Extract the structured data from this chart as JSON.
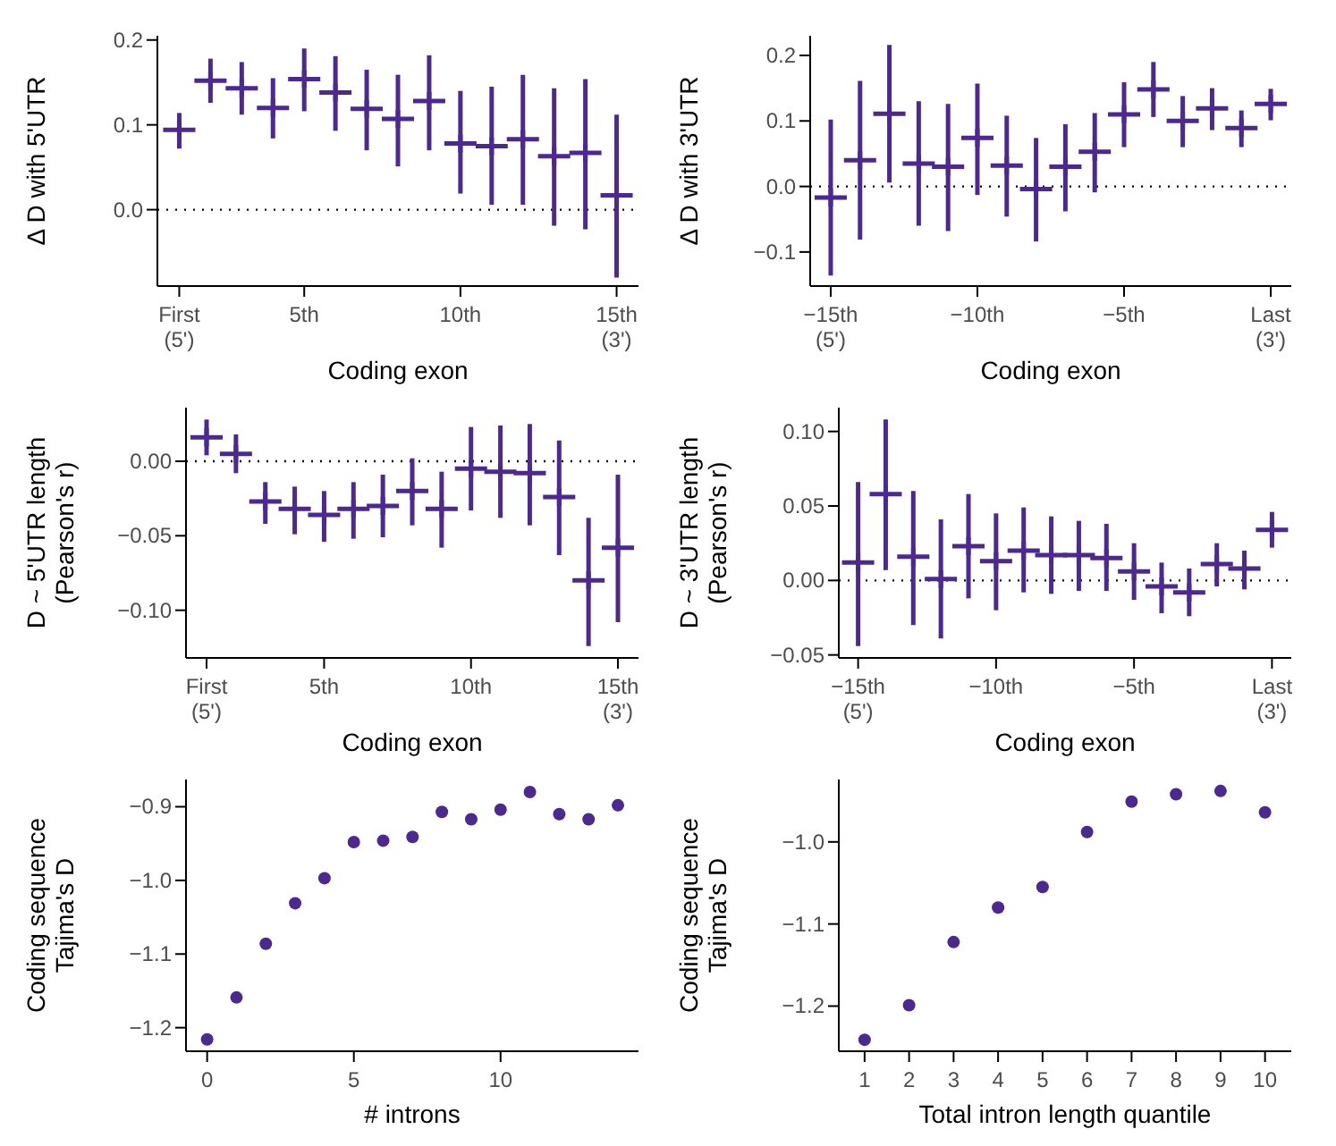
{
  "chart_data": [
    {
      "type": "scatter",
      "marker": "cross",
      "xlabel": "Coding exon",
      "ylabel": "Δ D with 5'UTR",
      "categories": [
        "First\n(5')",
        null,
        null,
        null,
        "5th",
        null,
        null,
        null,
        null,
        "10th",
        null,
        null,
        null,
        null,
        "15th\n(3')"
      ],
      "ylim": [
        -0.09,
        0.205
      ],
      "yticks": [
        {
          "value": 0,
          "label": "0.0"
        },
        {
          "value": 0.1,
          "label": "0.1"
        },
        {
          "value": 0.2,
          "label": "0.2"
        }
      ],
      "ref_lines": [
        {
          "axis": "y",
          "value": 0,
          "line_style": "dotted"
        }
      ],
      "series": [
        {
          "color": "#4b2991",
          "values": [
            0.094,
            0.152,
            0.143,
            0.12,
            0.154,
            0.138,
            0.119,
            0.107,
            0.128,
            0.078,
            0.075,
            0.083,
            0.063,
            0.067,
            0.017
          ],
          "errors": [
            [
              0.072,
              0.114
            ],
            [
              0.126,
              0.178
            ],
            [
              0.112,
              0.174
            ],
            [
              0.084,
              0.155
            ],
            [
              0.116,
              0.19
            ],
            [
              0.093,
              0.181
            ],
            [
              0.07,
              0.165
            ],
            [
              0.051,
              0.159
            ],
            [
              0.07,
              0.182
            ],
            [
              0.019,
              0.14
            ],
            [
              0.006,
              0.145
            ],
            [
              0.006,
              0.159
            ],
            [
              -0.019,
              0.143
            ],
            [
              -0.023,
              0.154
            ],
            [
              -0.08,
              0.112
            ]
          ]
        }
      ]
    },
    {
      "type": "scatter",
      "marker": "cross",
      "xlabel": "Coding exon",
      "ylabel": "Δ D with 3'UTR",
      "categories": [
        "−15th\n(5')",
        null,
        null,
        null,
        null,
        "−10th",
        null,
        null,
        null,
        null,
        "−5th",
        null,
        null,
        null,
        null,
        "Last\n(3')"
      ],
      "ylim": [
        -0.152,
        0.23
      ],
      "yticks": [
        {
          "value": -0.1,
          "label": "−0.1"
        },
        {
          "value": 0,
          "label": "0.0"
        },
        {
          "value": 0.1,
          "label": "0.1"
        },
        {
          "value": 0.2,
          "label": "0.2"
        }
      ],
      "ref_lines": [
        {
          "axis": "y",
          "value": 0,
          "line_style": "dotted"
        }
      ],
      "series": [
        {
          "color": "#4b2991",
          "values": [
            -0.017,
            0.04,
            0.111,
            0.035,
            0.03,
            0.074,
            0.032,
            -0.004,
            0.03,
            0.053,
            0.11,
            0.148,
            0.1,
            0.119,
            0.089,
            0.126
          ],
          "errors": [
            [
              -0.136,
              0.102
            ],
            [
              -0.081,
              0.161
            ],
            [
              0.006,
              0.216
            ],
            [
              -0.06,
              0.13
            ],
            [
              -0.068,
              0.126
            ],
            [
              -0.013,
              0.157
            ],
            [
              -0.046,
              0.108
            ],
            [
              -0.084,
              0.074
            ],
            [
              -0.038,
              0.095
            ],
            [
              -0.009,
              0.112
            ],
            [
              0.06,
              0.159
            ],
            [
              0.106,
              0.19
            ],
            [
              0.06,
              0.138
            ],
            [
              0.086,
              0.15
            ],
            [
              0.06,
              0.116
            ],
            [
              0.101,
              0.149
            ]
          ]
        }
      ]
    },
    {
      "type": "scatter",
      "marker": "cross",
      "xlabel": "Coding exon",
      "ylabel": "D ~ 5'UTR length\n(Pearson's r)",
      "categories": [
        "First\n(5')",
        null,
        null,
        null,
        "5th",
        null,
        null,
        null,
        null,
        "10th",
        null,
        null,
        null,
        null,
        "15th\n(3')"
      ],
      "ylim": [
        -0.132,
        0.036
      ],
      "yticks": [
        {
          "value": -0.1,
          "label": "−0.10"
        },
        {
          "value": -0.05,
          "label": "−0.05"
        },
        {
          "value": 0,
          "label": "0.00"
        }
      ],
      "ref_lines": [
        {
          "axis": "y",
          "value": 0,
          "line_style": "dotted"
        }
      ],
      "series": [
        {
          "color": "#4b2991",
          "values": [
            0.016,
            0.005,
            -0.027,
            -0.032,
            -0.036,
            -0.032,
            -0.03,
            -0.02,
            -0.032,
            -0.005,
            -0.007,
            -0.008,
            -0.024,
            -0.08,
            -0.058
          ],
          "errors": [
            [
              0.004,
              0.028
            ],
            [
              -0.008,
              0.018
            ],
            [
              -0.042,
              -0.014
            ],
            [
              -0.049,
              -0.017
            ],
            [
              -0.054,
              -0.02
            ],
            [
              -0.052,
              -0.014
            ],
            [
              -0.051,
              -0.009
            ],
            [
              -0.043,
              0.002
            ],
            [
              -0.058,
              -0.007
            ],
            [
              -0.033,
              0.023
            ],
            [
              -0.038,
              0.024
            ],
            [
              -0.043,
              0.025
            ],
            [
              -0.063,
              0.014
            ],
            [
              -0.124,
              -0.038
            ],
            [
              -0.108,
              -0.009
            ]
          ]
        }
      ]
    },
    {
      "type": "scatter",
      "marker": "cross",
      "xlabel": "Coding exon",
      "ylabel": "D ~ 3'UTR length\n(Pearson's r)",
      "categories": [
        "−15th\n(5')",
        null,
        null,
        null,
        null,
        "−10th",
        null,
        null,
        null,
        null,
        "−5th",
        null,
        null,
        null,
        null,
        "Last\n(3')"
      ],
      "ylim": [
        -0.052,
        0.116
      ],
      "yticks": [
        {
          "value": -0.05,
          "label": "−0.05"
        },
        {
          "value": 0,
          "label": "0.00"
        },
        {
          "value": 0.05,
          "label": "0.05"
        },
        {
          "value": 0.1,
          "label": "0.10"
        }
      ],
      "ref_lines": [
        {
          "axis": "y",
          "value": 0,
          "line_style": "dotted"
        }
      ],
      "series": [
        {
          "color": "#4b2991",
          "values": [
            0.012,
            0.058,
            0.016,
            0.001,
            0.023,
            0.013,
            0.02,
            0.017,
            0.017,
            0.015,
            0.006,
            -0.004,
            -0.008,
            0.011,
            0.008,
            0.034
          ],
          "errors": [
            [
              -0.044,
              0.066
            ],
            [
              0.007,
              0.108
            ],
            [
              -0.03,
              0.06
            ],
            [
              -0.039,
              0.041
            ],
            [
              -0.012,
              0.058
            ],
            [
              -0.02,
              0.045
            ],
            [
              -0.008,
              0.049
            ],
            [
              -0.009,
              0.043
            ],
            [
              -0.007,
              0.04
            ],
            [
              -0.007,
              0.038
            ],
            [
              -0.013,
              0.025
            ],
            [
              -0.022,
              0.012
            ],
            [
              -0.024,
              0.008
            ],
            [
              -0.004,
              0.025
            ],
            [
              -0.006,
              0.02
            ],
            [
              0.022,
              0.046
            ]
          ]
        }
      ]
    },
    {
      "type": "scatter",
      "marker": "circle",
      "xlabel": "# introns",
      "ylabel": "Coding sequence\nTajima's D",
      "x": [
        0,
        1,
        2,
        3,
        4,
        5,
        6,
        7,
        8,
        9,
        10,
        11,
        12,
        13,
        14
      ],
      "xlim": [
        -0.72,
        14.7
      ],
      "xticks": [
        0,
        5,
        10
      ],
      "ylim": [
        -1.232,
        -0.863
      ],
      "yticks": [
        {
          "value": -1.2,
          "label": "−1.2"
        },
        {
          "value": -1.1,
          "label": "−1.1"
        },
        {
          "value": -1,
          "label": "−1.0"
        },
        {
          "value": -0.9,
          "label": "−0.9"
        }
      ],
      "series": [
        {
          "color": "#4b2991",
          "values": [
            -1.216,
            -1.159,
            -1.086,
            -1.031,
            -0.997,
            -0.948,
            -0.946,
            -0.941,
            -0.907,
            -0.917,
            -0.904,
            -0.88,
            -0.91,
            -0.917,
            -0.898
          ]
        }
      ]
    },
    {
      "type": "scatter",
      "marker": "circle",
      "xlabel": "Total intron length quantile",
      "ylabel": "Coding sequence\nTajima's D",
      "x": [
        1,
        2,
        3,
        4,
        5,
        6,
        7,
        8,
        9,
        10
      ],
      "xlim": [
        0.42,
        10.59
      ],
      "xticks": [
        1,
        2,
        3,
        4,
        5,
        6,
        7,
        8,
        9,
        10
      ],
      "ylim": [
        -1.255,
        -0.924
      ],
      "yticks": [
        {
          "value": -1.2,
          "label": "−1.2"
        },
        {
          "value": -1.1,
          "label": "−1.1"
        },
        {
          "value": -1,
          "label": "−1.0"
        }
      ],
      "series": [
        {
          "color": "#4b2991",
          "values": [
            -1.241,
            -1.199,
            -1.122,
            -1.08,
            -1.055,
            -0.988,
            -0.951,
            -0.942,
            -0.938,
            -0.964
          ]
        }
      ]
    }
  ]
}
